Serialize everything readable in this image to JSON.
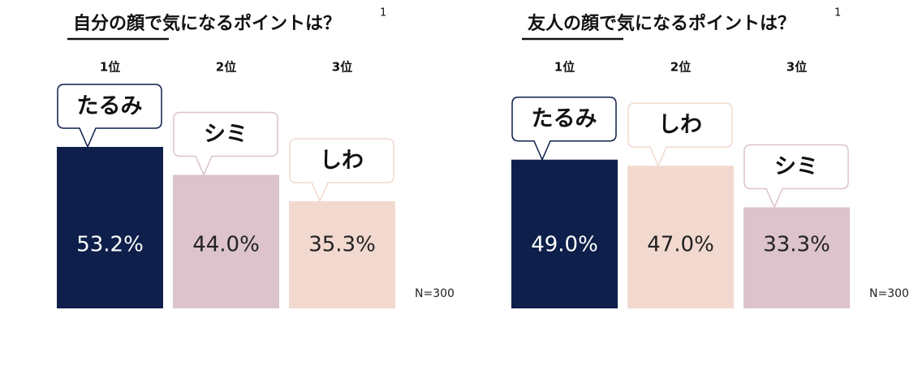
{
  "chart_data": [
    {
      "type": "bar",
      "title": "自分の顔で気になるポイントは？",
      "title_note": "1",
      "categories": [
        "1位",
        "2位",
        "3位"
      ],
      "bar_labels": [
        "たるみ",
        "シミ",
        "しわ"
      ],
      "values": [
        53.2,
        44.0,
        35.3
      ],
      "value_labels": [
        "53.2%",
        "44.0%",
        "35.3%"
      ],
      "colors": [
        "#0d1f4a",
        "#dcc3cc",
        "#f2d9cf"
      ],
      "note": "N=300"
    },
    {
      "type": "bar",
      "title": "友人の顔で気になるポイントは？",
      "title_note": "1",
      "categories": [
        "1位",
        "2位",
        "3位"
      ],
      "bar_labels": [
        "たるみ",
        "しわ",
        "シミ"
      ],
      "values": [
        49.0,
        47.0,
        33.3
      ],
      "value_labels": [
        "49.0%",
        "47.0%",
        "33.3%"
      ],
      "colors": [
        "#0d1f4a",
        "#f2d9cf",
        "#dcc3cc"
      ],
      "note": "N=300"
    }
  ]
}
